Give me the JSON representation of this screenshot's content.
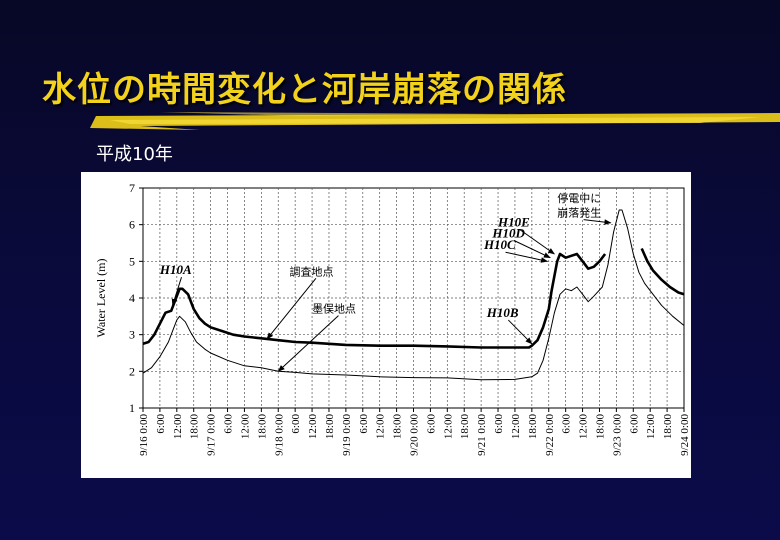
{
  "slide": {
    "title": "水位の時間変化と河岸崩落の関係",
    "subtitle": "平成10年"
  },
  "colors": {
    "background": "#0a0a3a",
    "title": "#f2d21a",
    "underline": "#e8c81a",
    "panel": "#ffffff"
  },
  "chart_data": {
    "type": "line",
    "title": "",
    "ylabel": "Water Level (m)",
    "xlabel": "",
    "ylim": [
      1,
      7
    ],
    "xlim": [
      0,
      192
    ],
    "yticks": [
      "1",
      "2",
      "3",
      "4",
      "5",
      "6",
      "7"
    ],
    "xticks": [
      {
        "h": 0,
        "label": "9/16 0:00"
      },
      {
        "h": 6,
        "label": "6:00"
      },
      {
        "h": 12,
        "label": "12:00"
      },
      {
        "h": 18,
        "label": "18:00"
      },
      {
        "h": 24,
        "label": "9/17 0:00"
      },
      {
        "h": 30,
        "label": "6:00"
      },
      {
        "h": 36,
        "label": "12:00"
      },
      {
        "h": 42,
        "label": "18:00"
      },
      {
        "h": 48,
        "label": "9/18 0:00"
      },
      {
        "h": 54,
        "label": "6:00"
      },
      {
        "h": 60,
        "label": "12:00"
      },
      {
        "h": 66,
        "label": "18:00"
      },
      {
        "h": 72,
        "label": "9/19 0:00"
      },
      {
        "h": 78,
        "label": "6:00"
      },
      {
        "h": 84,
        "label": "12:00"
      },
      {
        "h": 90,
        "label": "18:00"
      },
      {
        "h": 96,
        "label": "9/20 0:00"
      },
      {
        "h": 102,
        "label": "6:00"
      },
      {
        "h": 108,
        "label": "12:00"
      },
      {
        "h": 114,
        "label": "18:00"
      },
      {
        "h": 120,
        "label": "9/21 0:00"
      },
      {
        "h": 126,
        "label": "6:00"
      },
      {
        "h": 132,
        "label": "12:00"
      },
      {
        "h": 138,
        "label": "18:00"
      },
      {
        "h": 144,
        "label": "9/22 0:00"
      },
      {
        "h": 150,
        "label": "6:00"
      },
      {
        "h": 156,
        "label": "12:00"
      },
      {
        "h": 162,
        "label": "18:00"
      },
      {
        "h": 168,
        "label": "9/23 0:00"
      },
      {
        "h": 174,
        "label": "6:00"
      },
      {
        "h": 180,
        "label": "12:00"
      },
      {
        "h": 186,
        "label": "18:00"
      },
      {
        "h": 192,
        "label": "9/24 0:00"
      }
    ],
    "grid": true,
    "series": [
      {
        "name": "調査地点",
        "style": "thick",
        "segments": [
          [
            [
              0,
              2.75
            ],
            [
              2,
              2.8
            ],
            [
              4,
              3.0
            ],
            [
              6,
              3.3
            ],
            [
              8,
              3.6
            ],
            [
              10,
              3.65
            ],
            [
              12,
              4.05
            ],
            [
              13,
              4.25
            ],
            [
              14,
              4.25
            ],
            [
              16,
              4.1
            ],
            [
              18,
              3.7
            ],
            [
              20,
              3.45
            ],
            [
              22,
              3.3
            ],
            [
              24,
              3.2
            ],
            [
              28,
              3.1
            ],
            [
              32,
              3.0
            ],
            [
              36,
              2.95
            ],
            [
              42,
              2.9
            ],
            [
              48,
              2.85
            ],
            [
              54,
              2.8
            ],
            [
              60,
              2.78
            ],
            [
              66,
              2.75
            ],
            [
              72,
              2.72
            ],
            [
              84,
              2.7
            ],
            [
              96,
              2.7
            ],
            [
              108,
              2.68
            ],
            [
              120,
              2.65
            ],
            [
              132,
              2.65
            ],
            [
              137,
              2.65
            ],
            [
              138,
              2.7
            ],
            [
              140,
              2.85
            ],
            [
              142,
              3.2
            ],
            [
              144,
              3.7
            ],
            [
              145,
              4.2
            ],
            [
              146,
              4.6
            ],
            [
              147,
              5.0
            ],
            [
              148,
              5.2
            ],
            [
              150,
              5.1
            ],
            [
              152,
              5.15
            ],
            [
              154,
              5.2
            ],
            [
              156,
              5.0
            ],
            [
              158,
              4.8
            ],
            [
              160,
              4.85
            ],
            [
              162,
              5.0
            ],
            [
              164,
              5.2
            ]
          ],
          [
            [
              177,
              5.35
            ],
            [
              179,
              5.0
            ],
            [
              181,
              4.75
            ],
            [
              184,
              4.5
            ],
            [
              187,
              4.3
            ],
            [
              190,
              4.15
            ],
            [
              192,
              4.1
            ]
          ]
        ]
      },
      {
        "name": "墨俣地点",
        "style": "thin",
        "segments": [
          [
            [
              0,
              1.95
            ],
            [
              3,
              2.1
            ],
            [
              6,
              2.4
            ],
            [
              9,
              2.8
            ],
            [
              11,
              3.2
            ],
            [
              12,
              3.4
            ],
            [
              13,
              3.5
            ],
            [
              15,
              3.35
            ],
            [
              17,
              3.05
            ],
            [
              19,
              2.8
            ],
            [
              22,
              2.6
            ],
            [
              24,
              2.5
            ],
            [
              30,
              2.3
            ],
            [
              36,
              2.15
            ],
            [
              42,
              2.1
            ],
            [
              48,
              2.0
            ],
            [
              54,
              1.97
            ],
            [
              60,
              1.93
            ],
            [
              72,
              1.9
            ],
            [
              84,
              1.85
            ],
            [
              96,
              1.83
            ],
            [
              108,
              1.82
            ],
            [
              120,
              1.77
            ],
            [
              132,
              1.78
            ],
            [
              138,
              1.85
            ],
            [
              140,
              1.95
            ],
            [
              142,
              2.3
            ],
            [
              144,
              2.9
            ],
            [
              146,
              3.6
            ],
            [
              148,
              4.1
            ],
            [
              150,
              4.25
            ],
            [
              152,
              4.2
            ],
            [
              154,
              4.3
            ],
            [
              156,
              4.1
            ],
            [
              158,
              3.9
            ],
            [
              160,
              4.05
            ],
            [
              163,
              4.3
            ],
            [
              165,
              4.9
            ],
            [
              167,
              5.8
            ],
            [
              169,
              6.4
            ],
            [
              170,
              6.4
            ],
            [
              172,
              5.9
            ],
            [
              174,
              5.2
            ],
            [
              176,
              4.7
            ],
            [
              178,
              4.4
            ],
            [
              180,
              4.2
            ],
            [
              184,
              3.8
            ],
            [
              188,
              3.5
            ],
            [
              192,
              3.25
            ]
          ]
        ]
      }
    ],
    "annotations": [
      {
        "text": "H10A",
        "kind": "bold",
        "x": 6,
        "y": 4.65,
        "ax": 10.5,
        "ay": 3.8
      },
      {
        "text": "調査地点",
        "kind": "jp",
        "x": 52,
        "y": 4.62,
        "ax": 44,
        "ay": 2.88
      },
      {
        "text": "墨俣地点",
        "kind": "jp",
        "x": 60,
        "y": 3.6,
        "ax": 48,
        "ay": 2.0
      },
      {
        "text": "H10B",
        "kind": "bold",
        "x": 122,
        "y": 3.48,
        "ax": 138,
        "ay": 2.75
      },
      {
        "text": "H10C",
        "kind": "bold",
        "x": 121,
        "y": 5.33,
        "ax": 143.5,
        "ay": 5.0
      },
      {
        "text": "H10D",
        "kind": "bold",
        "x": 124,
        "y": 5.65,
        "ax": 144.5,
        "ay": 5.1
      },
      {
        "text": "H10E",
        "kind": "bold",
        "x": 126,
        "y": 5.95,
        "ax": 146,
        "ay": 5.2
      },
      {
        "text": "停電中に",
        "kind": "jp",
        "x": 147,
        "y": 6.62,
        "ax": null,
        "ay": null
      },
      {
        "text": "崩落発生",
        "kind": "jp",
        "x": 147,
        "y": 6.22,
        "ax": 166,
        "ay": 6.05
      }
    ]
  }
}
